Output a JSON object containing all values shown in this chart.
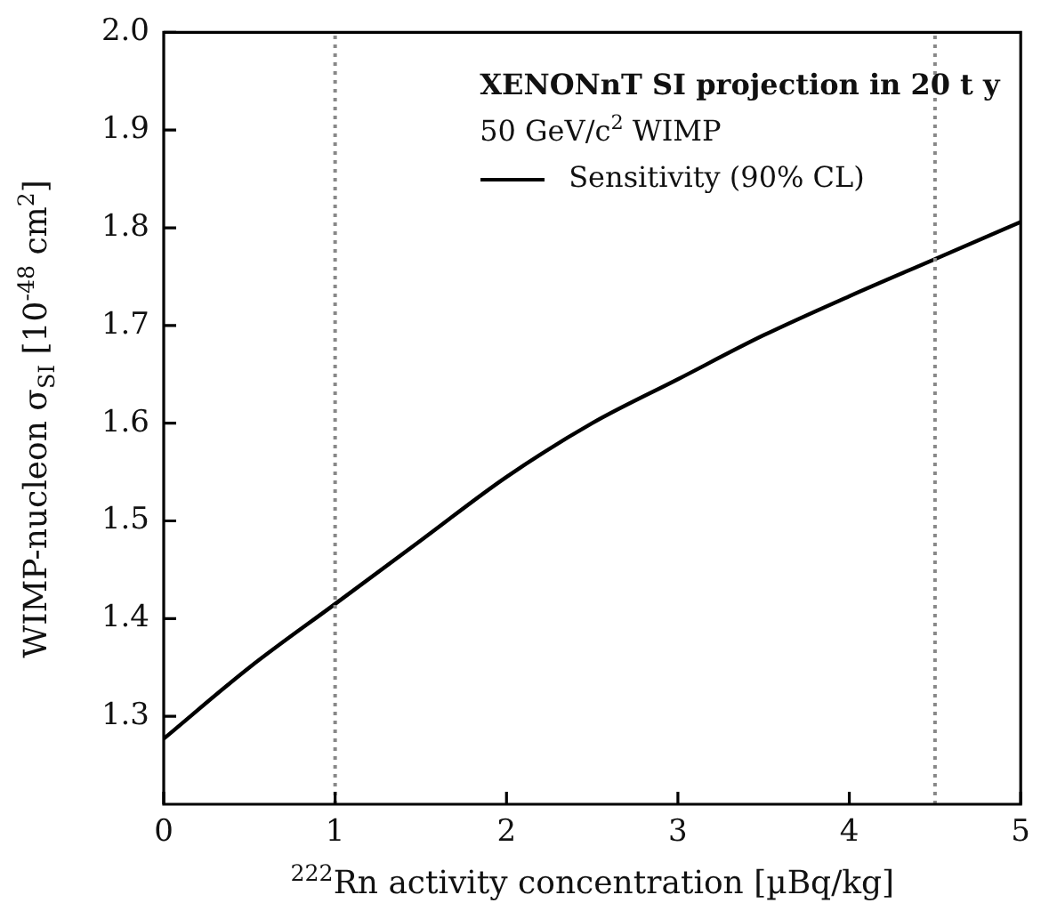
{
  "chart_data": {
    "type": "line",
    "legend_title": "XENONnT SI projection in 20 t y",
    "annotations": [
      "50 GeV/c$^{2}$ WIMP"
    ],
    "xlabel": "$^{222}$Rn activity concentration [µBq/kg]",
    "ylabel": "WIMP-nucleon σ$_{SI}$ [10$^{-48}$ cm$^{2}$]",
    "x": [
      0,
      0.5,
      1,
      1.5,
      2,
      2.5,
      3,
      3.5,
      4,
      4.5,
      5
    ],
    "series": [
      {
        "name": "Sensitivity (90% CL)",
        "color": "#000000",
        "values": [
          1.277,
          1.35,
          1.415,
          1.48,
          1.545,
          1.6,
          1.645,
          1.69,
          1.73,
          1.768,
          1.806
        ]
      }
    ],
    "xlim": [
      0,
      5
    ],
    "xticks": [
      0,
      1,
      2,
      3,
      4,
      5
    ],
    "ylim": [
      1.21,
      2.0
    ],
    "yticks": [
      {
        "value": 1.3,
        "label": "1.3"
      },
      {
        "value": 1.4,
        "label": "1.4"
      },
      {
        "value": 1.5,
        "label": "1.5"
      },
      {
        "value": 1.6,
        "label": "1.6"
      },
      {
        "value": 1.7,
        "label": "1.7"
      },
      {
        "value": 1.8,
        "label": "1.8"
      },
      {
        "value": 1.9,
        "label": "1.9"
      },
      {
        "value": 2.0,
        "label": "2.0"
      }
    ],
    "ref_lines": [
      {
        "axis": "x",
        "value": 1,
        "color": "#888888",
        "line_style": "dotted"
      },
      {
        "axis": "x",
        "value": 4.5,
        "color": "#888888",
        "line_style": "dotted"
      }
    ],
    "grid": false,
    "legend": "top right",
    "line_style": "solid",
    "marker": "none"
  }
}
